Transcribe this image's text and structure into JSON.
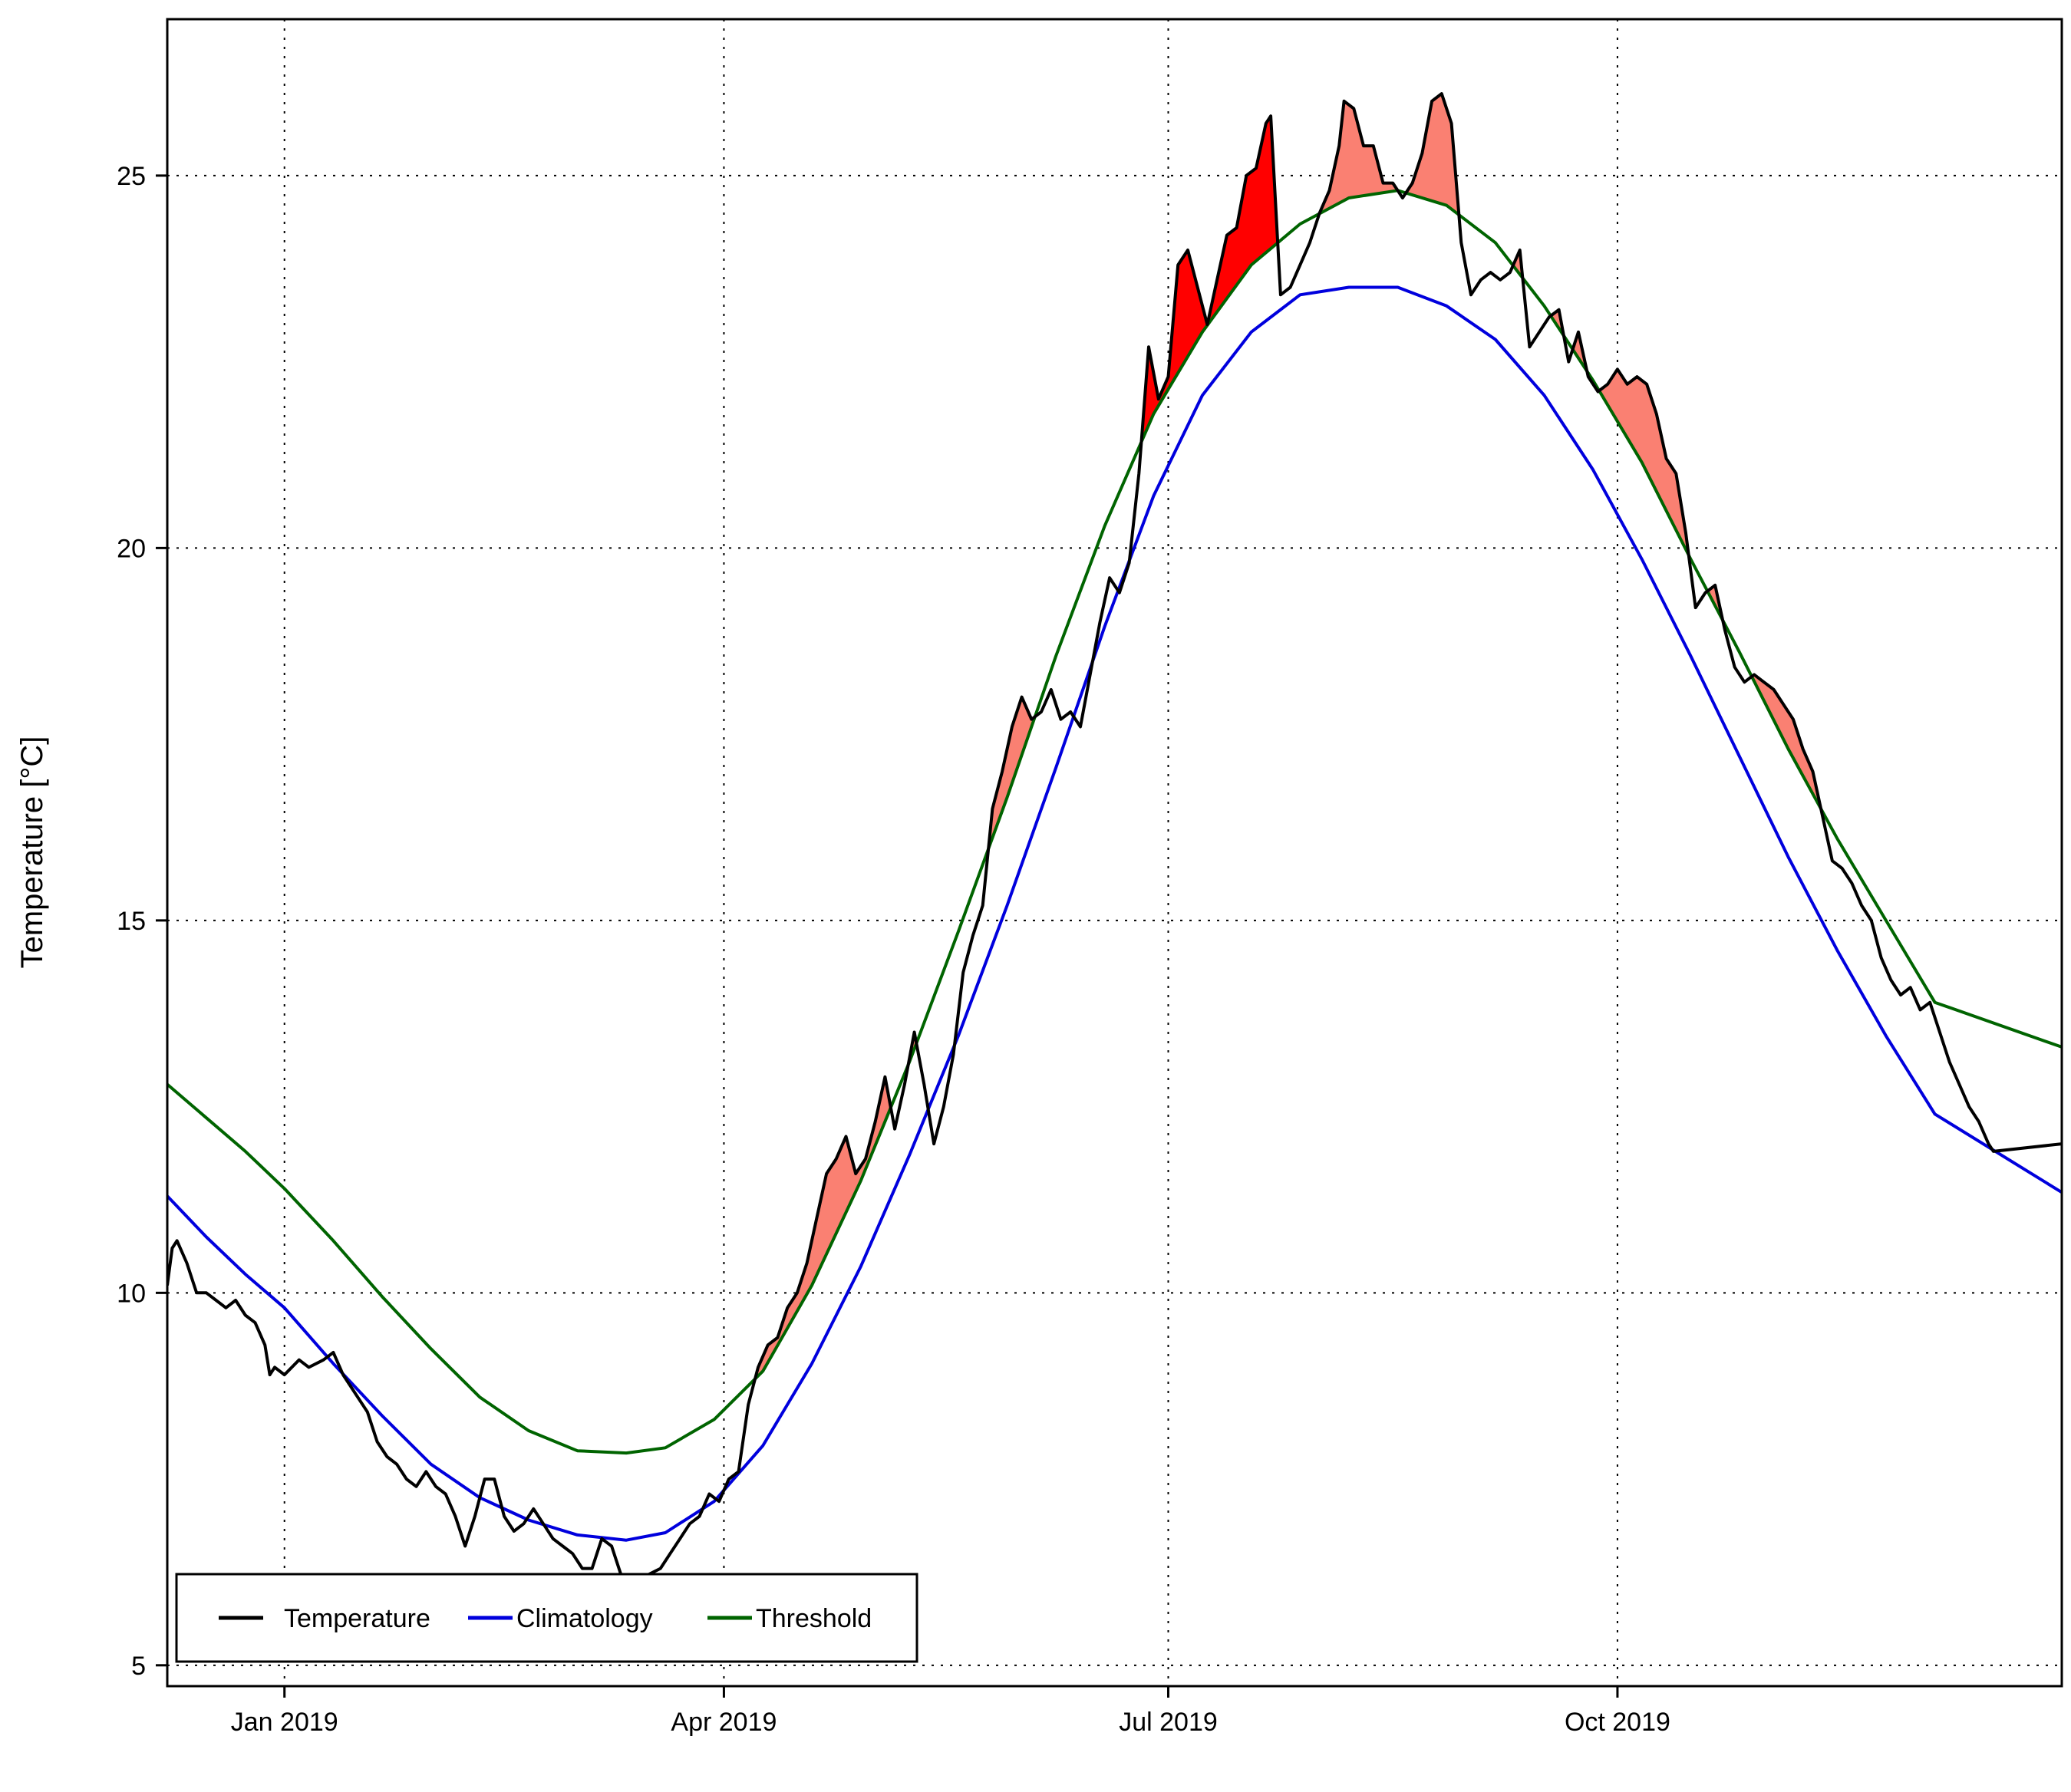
{
  "chart_data": {
    "type": "line",
    "title": "",
    "xlabel": "",
    "ylabel": "Temperature [°C]",
    "x_range": [
      "2018-12-08",
      "2019-12-31"
    ],
    "ylim": [
      4.72,
      27.1
    ],
    "grid": true,
    "legend_position": "bottom-left",
    "colors": {
      "temperature": "#000000",
      "climatology": "#0000dd",
      "threshold": "#006400",
      "event_fill": "#fa8072",
      "peak_event_fill": "#ff0000"
    },
    "x_ticks": [
      {
        "date": "2019-01-01",
        "label": "Jan 2019"
      },
      {
        "date": "2019-04-01",
        "label": "Apr 2019"
      },
      {
        "date": "2019-07-01",
        "label": "Jul 2019"
      },
      {
        "date": "2019-10-01",
        "label": "Oct 2019"
      }
    ],
    "y_ticks": [
      {
        "value": 5,
        "label": "5"
      },
      {
        "value": 10,
        "label": "10"
      },
      {
        "value": 15,
        "label": "15"
      },
      {
        "value": 20,
        "label": "20"
      },
      {
        "value": 25,
        "label": "25"
      }
    ],
    "legend": [
      {
        "series": "temperature",
        "label": "Temperature"
      },
      {
        "series": "climatology",
        "label": "Climatology"
      },
      {
        "series": "threshold",
        "label": "Threshold"
      }
    ],
    "series": [
      {
        "name": "Temperature",
        "key": "temperature",
        "points": [
          [
            "2018-12-08",
            10.1
          ],
          [
            "2018-12-09",
            10.6
          ],
          [
            "2018-12-10",
            10.7
          ],
          [
            "2018-12-12",
            10.4
          ],
          [
            "2018-12-14",
            10.0
          ],
          [
            "2018-12-16",
            10.0
          ],
          [
            "2018-12-18",
            9.9
          ],
          [
            "2018-12-20",
            9.8
          ],
          [
            "2018-12-22",
            9.9
          ],
          [
            "2018-12-24",
            9.7
          ],
          [
            "2018-12-26",
            9.6
          ],
          [
            "2018-12-28",
            9.3
          ],
          [
            "2018-12-29",
            8.9
          ],
          [
            "2018-12-30",
            9.0
          ],
          [
            "2019-01-01",
            8.9
          ],
          [
            "2019-01-04",
            9.1
          ],
          [
            "2019-01-06",
            9.0
          ],
          [
            "2019-01-09",
            9.1
          ],
          [
            "2019-01-11",
            9.2
          ],
          [
            "2019-01-13",
            8.9
          ],
          [
            "2019-01-16",
            8.6
          ],
          [
            "2019-01-18",
            8.4
          ],
          [
            "2019-01-20",
            8.0
          ],
          [
            "2019-01-22",
            7.8
          ],
          [
            "2019-01-24",
            7.7
          ],
          [
            "2019-01-26",
            7.5
          ],
          [
            "2019-01-28",
            7.4
          ],
          [
            "2019-01-30",
            7.6
          ],
          [
            "2019-02-01",
            7.4
          ],
          [
            "2019-02-03",
            7.3
          ],
          [
            "2019-02-05",
            7.0
          ],
          [
            "2019-02-07",
            6.6
          ],
          [
            "2019-02-09",
            7.0
          ],
          [
            "2019-02-11",
            7.5
          ],
          [
            "2019-02-13",
            7.5
          ],
          [
            "2019-02-15",
            7.0
          ],
          [
            "2019-02-17",
            6.8
          ],
          [
            "2019-02-19",
            6.9
          ],
          [
            "2019-02-21",
            7.1
          ],
          [
            "2019-02-23",
            6.9
          ],
          [
            "2019-02-25",
            6.7
          ],
          [
            "2019-02-27",
            6.6
          ],
          [
            "2019-03-01",
            6.5
          ],
          [
            "2019-03-03",
            6.3
          ],
          [
            "2019-03-05",
            6.3
          ],
          [
            "2019-03-07",
            6.7
          ],
          [
            "2019-03-09",
            6.6
          ],
          [
            "2019-03-11",
            6.2
          ],
          [
            "2019-03-13",
            6.1
          ],
          [
            "2019-03-16",
            6.2
          ],
          [
            "2019-03-19",
            6.3
          ],
          [
            "2019-03-21",
            6.5
          ],
          [
            "2019-03-23",
            6.7
          ],
          [
            "2019-03-25",
            6.9
          ],
          [
            "2019-03-27",
            7.0
          ],
          [
            "2019-03-29",
            7.3
          ],
          [
            "2019-03-31",
            7.2
          ],
          [
            "2019-04-02",
            7.5
          ],
          [
            "2019-04-04",
            7.6
          ],
          [
            "2019-04-06",
            8.5
          ],
          [
            "2019-04-08",
            9.0
          ],
          [
            "2019-04-10",
            9.3
          ],
          [
            "2019-04-12",
            9.4
          ],
          [
            "2019-04-14",
            9.8
          ],
          [
            "2019-04-16",
            10.0
          ],
          [
            "2019-04-18",
            10.4
          ],
          [
            "2019-04-20",
            11.0
          ],
          [
            "2019-04-22",
            11.6
          ],
          [
            "2019-04-24",
            11.8
          ],
          [
            "2019-04-26",
            12.1
          ],
          [
            "2019-04-28",
            11.6
          ],
          [
            "2019-04-30",
            11.8
          ],
          [
            "2019-05-02",
            12.3
          ],
          [
            "2019-05-04",
            12.9
          ],
          [
            "2019-05-06",
            12.2
          ],
          [
            "2019-05-08",
            12.8
          ],
          [
            "2019-05-10",
            13.5
          ],
          [
            "2019-05-12",
            12.8
          ],
          [
            "2019-05-14",
            12.0
          ],
          [
            "2019-05-16",
            12.5
          ],
          [
            "2019-05-18",
            13.2
          ],
          [
            "2019-05-20",
            14.3
          ],
          [
            "2019-05-22",
            14.8
          ],
          [
            "2019-05-24",
            15.2
          ],
          [
            "2019-05-26",
            16.5
          ],
          [
            "2019-05-28",
            17.0
          ],
          [
            "2019-05-30",
            17.6
          ],
          [
            "2019-06-01",
            18.0
          ],
          [
            "2019-06-03",
            17.7
          ],
          [
            "2019-06-05",
            17.8
          ],
          [
            "2019-06-07",
            18.1
          ],
          [
            "2019-06-09",
            17.7
          ],
          [
            "2019-06-11",
            17.8
          ],
          [
            "2019-06-13",
            17.6
          ],
          [
            "2019-06-15",
            18.3
          ],
          [
            "2019-06-17",
            19.0
          ],
          [
            "2019-06-19",
            19.6
          ],
          [
            "2019-06-21",
            19.4
          ],
          [
            "2019-06-23",
            19.8
          ],
          [
            "2019-06-25",
            21.0
          ],
          [
            "2019-06-27",
            22.7
          ],
          [
            "2019-06-29",
            22.0
          ],
          [
            "2019-07-01",
            22.3
          ],
          [
            "2019-07-03",
            23.8
          ],
          [
            "2019-07-05",
            24.0
          ],
          [
            "2019-07-07",
            23.5
          ],
          [
            "2019-07-09",
            23.0
          ],
          [
            "2019-07-11",
            23.6
          ],
          [
            "2019-07-13",
            24.2
          ],
          [
            "2019-07-15",
            24.3
          ],
          [
            "2019-07-17",
            25.0
          ],
          [
            "2019-07-19",
            25.1
          ],
          [
            "2019-07-21",
            25.7
          ],
          [
            "2019-07-22",
            25.8
          ],
          [
            "2019-07-24",
            23.4
          ],
          [
            "2019-07-26",
            23.5
          ],
          [
            "2019-07-28",
            23.8
          ],
          [
            "2019-07-30",
            24.1
          ],
          [
            "2019-08-01",
            24.5
          ],
          [
            "2019-08-03",
            24.8
          ],
          [
            "2019-08-05",
            25.4
          ],
          [
            "2019-08-06",
            26.0
          ],
          [
            "2019-08-08",
            25.9
          ],
          [
            "2019-08-10",
            25.4
          ],
          [
            "2019-08-12",
            25.4
          ],
          [
            "2019-08-14",
            24.9
          ],
          [
            "2019-08-16",
            24.9
          ],
          [
            "2019-08-18",
            24.7
          ],
          [
            "2019-08-20",
            24.9
          ],
          [
            "2019-08-22",
            25.3
          ],
          [
            "2019-08-24",
            26.0
          ],
          [
            "2019-08-26",
            26.1
          ],
          [
            "2019-08-28",
            25.7
          ],
          [
            "2019-08-30",
            24.1
          ],
          [
            "2019-09-01",
            23.4
          ],
          [
            "2019-09-03",
            23.6
          ],
          [
            "2019-09-05",
            23.7
          ],
          [
            "2019-09-07",
            23.6
          ],
          [
            "2019-09-09",
            23.7
          ],
          [
            "2019-09-11",
            24.0
          ],
          [
            "2019-09-13",
            22.7
          ],
          [
            "2019-09-15",
            22.9
          ],
          [
            "2019-09-17",
            23.1
          ],
          [
            "2019-09-19",
            23.2
          ],
          [
            "2019-09-21",
            22.5
          ],
          [
            "2019-09-23",
            22.9
          ],
          [
            "2019-09-25",
            22.3
          ],
          [
            "2019-09-27",
            22.1
          ],
          [
            "2019-09-29",
            22.2
          ],
          [
            "2019-10-01",
            22.4
          ],
          [
            "2019-10-03",
            22.2
          ],
          [
            "2019-10-05",
            22.3
          ],
          [
            "2019-10-07",
            22.2
          ],
          [
            "2019-10-09",
            21.8
          ],
          [
            "2019-10-11",
            21.2
          ],
          [
            "2019-10-13",
            21.0
          ],
          [
            "2019-10-15",
            20.2
          ],
          [
            "2019-10-17",
            19.2
          ],
          [
            "2019-10-19",
            19.4
          ],
          [
            "2019-10-21",
            19.5
          ],
          [
            "2019-10-23",
            18.9
          ],
          [
            "2019-10-25",
            18.4
          ],
          [
            "2019-10-27",
            18.2
          ],
          [
            "2019-10-29",
            18.3
          ],
          [
            "2019-10-31",
            18.2
          ],
          [
            "2019-11-02",
            18.1
          ],
          [
            "2019-11-04",
            17.9
          ],
          [
            "2019-11-06",
            17.7
          ],
          [
            "2019-11-08",
            17.3
          ],
          [
            "2019-11-10",
            17.0
          ],
          [
            "2019-11-12",
            16.4
          ],
          [
            "2019-11-14",
            15.8
          ],
          [
            "2019-11-16",
            15.7
          ],
          [
            "2019-11-18",
            15.5
          ],
          [
            "2019-11-20",
            15.2
          ],
          [
            "2019-11-22",
            15.0
          ],
          [
            "2019-11-24",
            14.5
          ],
          [
            "2019-11-26",
            14.2
          ],
          [
            "2019-11-28",
            14.0
          ],
          [
            "2019-11-30",
            14.1
          ],
          [
            "2019-12-02",
            13.8
          ],
          [
            "2019-12-04",
            13.9
          ],
          [
            "2019-12-06",
            13.5
          ],
          [
            "2019-12-08",
            13.1
          ],
          [
            "2019-12-10",
            12.8
          ],
          [
            "2019-12-12",
            12.5
          ],
          [
            "2019-12-14",
            12.3
          ],
          [
            "2019-12-16",
            12.0
          ],
          [
            "2019-12-17",
            11.9
          ],
          [
            "2019-12-31",
            12.0
          ]
        ]
      },
      {
        "name": "Climatology",
        "key": "climatology",
        "points": [
          [
            "2018-12-08",
            11.3
          ],
          [
            "2018-12-16",
            10.75
          ],
          [
            "2018-12-24",
            10.25
          ],
          [
            "2019-01-01",
            9.8
          ],
          [
            "2019-01-11",
            9.05
          ],
          [
            "2019-01-21",
            8.35
          ],
          [
            "2019-01-31",
            7.7
          ],
          [
            "2019-02-10",
            7.25
          ],
          [
            "2019-02-20",
            6.95
          ],
          [
            "2019-03-02",
            6.75
          ],
          [
            "2019-03-12",
            6.68
          ],
          [
            "2019-03-20",
            6.78
          ],
          [
            "2019-03-30",
            7.2
          ],
          [
            "2019-04-09",
            7.95
          ],
          [
            "2019-04-19",
            9.05
          ],
          [
            "2019-04-29",
            10.35
          ],
          [
            "2019-05-09",
            11.85
          ],
          [
            "2019-05-19",
            13.45
          ],
          [
            "2019-05-29",
            15.2
          ],
          [
            "2019-06-08",
            17.05
          ],
          [
            "2019-06-18",
            18.95
          ],
          [
            "2019-06-28",
            20.7
          ],
          [
            "2019-07-08",
            22.05
          ],
          [
            "2019-07-18",
            22.9
          ],
          [
            "2019-07-28",
            23.4
          ],
          [
            "2019-08-07",
            23.5
          ],
          [
            "2019-08-17",
            23.5
          ],
          [
            "2019-08-27",
            23.25
          ],
          [
            "2019-09-06",
            22.8
          ],
          [
            "2019-09-16",
            22.05
          ],
          [
            "2019-09-26",
            21.05
          ],
          [
            "2019-10-06",
            19.85
          ],
          [
            "2019-10-16",
            18.55
          ],
          [
            "2019-10-26",
            17.2
          ],
          [
            "2019-11-05",
            15.85
          ],
          [
            "2019-11-15",
            14.6
          ],
          [
            "2019-11-25",
            13.45
          ],
          [
            "2019-12-05",
            12.4
          ],
          [
            "2019-12-31",
            11.35
          ]
        ]
      },
      {
        "name": "Threshold",
        "key": "threshold",
        "points": [
          [
            "2018-12-08",
            12.8
          ],
          [
            "2018-12-16",
            12.35
          ],
          [
            "2018-12-24",
            11.9
          ],
          [
            "2019-01-01",
            11.4
          ],
          [
            "2019-01-11",
            10.7
          ],
          [
            "2019-01-21",
            9.95
          ],
          [
            "2019-01-31",
            9.25
          ],
          [
            "2019-02-10",
            8.6
          ],
          [
            "2019-02-20",
            8.15
          ],
          [
            "2019-03-02",
            7.88
          ],
          [
            "2019-03-12",
            7.85
          ],
          [
            "2019-03-20",
            7.92
          ],
          [
            "2019-03-30",
            8.3
          ],
          [
            "2019-04-09",
            8.95
          ],
          [
            "2019-04-19",
            10.1
          ],
          [
            "2019-04-29",
            11.5
          ],
          [
            "2019-05-09",
            13.1
          ],
          [
            "2019-05-19",
            14.85
          ],
          [
            "2019-05-29",
            16.65
          ],
          [
            "2019-06-08",
            18.55
          ],
          [
            "2019-06-18",
            20.3
          ],
          [
            "2019-06-28",
            21.8
          ],
          [
            "2019-07-08",
            22.9
          ],
          [
            "2019-07-18",
            23.8
          ],
          [
            "2019-07-28",
            24.35
          ],
          [
            "2019-08-07",
            24.7
          ],
          [
            "2019-08-17",
            24.8
          ],
          [
            "2019-08-27",
            24.6
          ],
          [
            "2019-09-06",
            24.1
          ],
          [
            "2019-09-16",
            23.25
          ],
          [
            "2019-09-26",
            22.25
          ],
          [
            "2019-10-06",
            21.15
          ],
          [
            "2019-10-16",
            19.85
          ],
          [
            "2019-10-26",
            18.6
          ],
          [
            "2019-11-05",
            17.3
          ],
          [
            "2019-11-15",
            16.1
          ],
          [
            "2019-11-25",
            15.0
          ],
          [
            "2019-12-05",
            13.9
          ],
          [
            "2019-12-31",
            13.3
          ]
        ]
      }
    ],
    "peak_event": {
      "start": "2019-07-01",
      "end": "2019-07-23"
    }
  }
}
